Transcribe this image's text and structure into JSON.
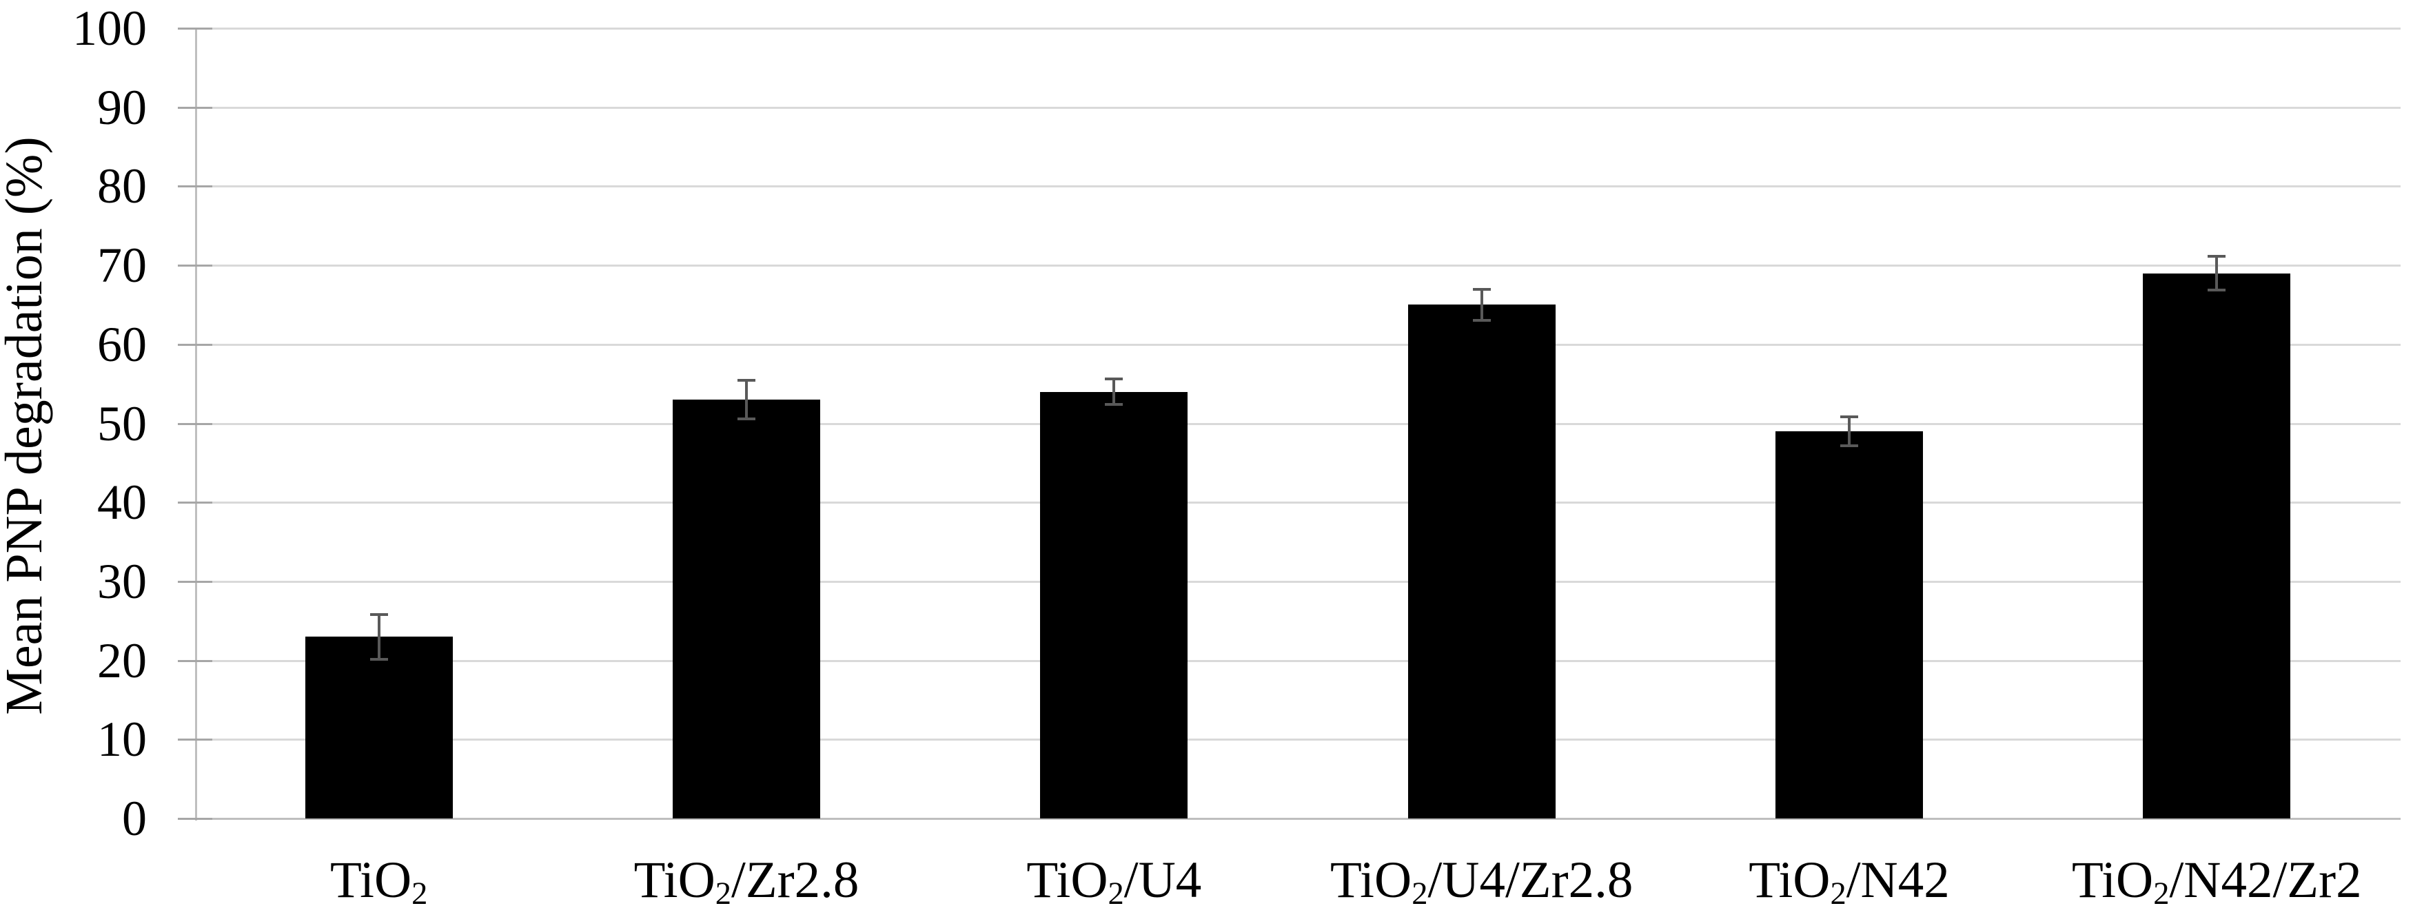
{
  "figure": {
    "background": "#ffffff"
  },
  "chart_data": {
    "type": "bar",
    "title": "",
    "xlabel": "",
    "ylabel": "Mean PNP degradation (%)",
    "ylim": [
      0,
      100
    ],
    "ytick_step": 10,
    "ytick_labels": [
      "0",
      "10",
      "20",
      "30",
      "40",
      "50",
      "60",
      "70",
      "80",
      "90",
      "100"
    ],
    "grid": true,
    "legend_position": "none",
    "categories": [
      "TiO2",
      "TiO2/Zr2.8",
      "TiO2/U4",
      "TiO2/U4/Zr2.8",
      "TiO2/N42",
      "TiO2/N42/Zr2"
    ],
    "categories_rich": [
      [
        {
          "t": "TiO"
        },
        {
          "t": "2",
          "sub": true
        }
      ],
      [
        {
          "t": "TiO"
        },
        {
          "t": "2",
          "sub": true
        },
        {
          "t": "/Zr2.8"
        }
      ],
      [
        {
          "t": "TiO"
        },
        {
          "t": "2",
          "sub": true
        },
        {
          "t": "/U4"
        }
      ],
      [
        {
          "t": "TiO"
        },
        {
          "t": "2",
          "sub": true
        },
        {
          "t": "/U4/Zr2.8"
        }
      ],
      [
        {
          "t": "TiO"
        },
        {
          "t": "2",
          "sub": true
        },
        {
          "t": "/N42"
        }
      ],
      [
        {
          "t": "TiO"
        },
        {
          "t": "2",
          "sub": true
        },
        {
          "t": "/N42/Zr2"
        }
      ]
    ],
    "series": [
      {
        "name": "Mean PNP degradation",
        "values": [
          23,
          53,
          54,
          65,
          49,
          69
        ],
        "error_plus": [
          3,
          2.6,
          1.8,
          2.1,
          2,
          2.3
        ],
        "error_minus": [
          3,
          2.6,
          1.8,
          2.1,
          2,
          2.3
        ]
      }
    ],
    "colors": {
      "bar": "#000000",
      "gridline": "#d9d9d9",
      "axis_line": "#bfbfbf",
      "tick_mark": "#a6a6a6",
      "error_bar": "#595959",
      "text": "#000000",
      "background": "#ffffff"
    }
  }
}
